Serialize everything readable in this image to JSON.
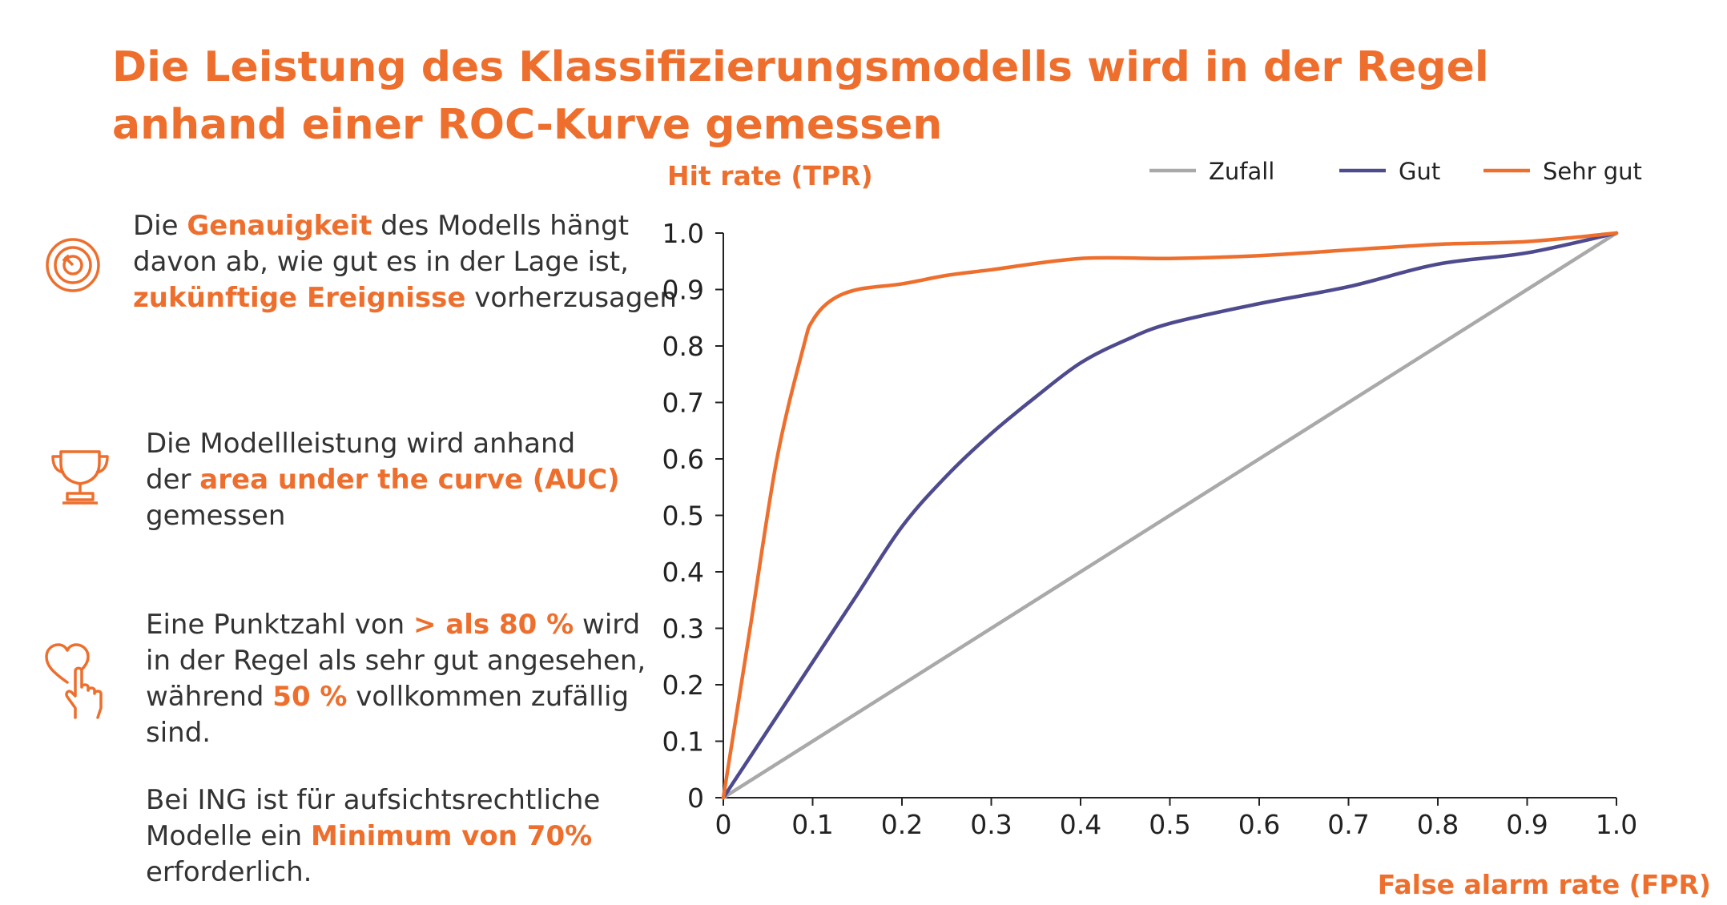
{
  "title": "Die Leistung des Klassifizierungsmodells wird in der Regel anhand einer ROC-Kurve gemessen",
  "colors": {
    "accent": "#ee6f2d",
    "text": "#333333",
    "gut": "#4e4a8e",
    "zufall": "#a9a9a9"
  },
  "points": [
    {
      "icon": "target-icon",
      "lines": [
        [
          {
            "t": "Die "
          },
          {
            "t": "Genauigkeit",
            "b": true
          },
          {
            "t": " des Modells hängt"
          }
        ],
        [
          {
            "t": "davon ab, wie gut es in der Lage ist,"
          }
        ],
        [
          {
            "t": "zukünftige Ereignisse",
            "b": true
          },
          {
            "t": " vorherzusagen"
          }
        ]
      ]
    },
    {
      "icon": "trophy-icon",
      "lines": [
        [
          {
            "t": "Die Modellleistung wird anhand"
          }
        ],
        [
          {
            "t": "der "
          },
          {
            "t": "area under the curve (AUC)",
            "b": true
          }
        ],
        [
          {
            "t": "gemessen"
          }
        ]
      ]
    },
    {
      "icon": "heart-hand-icon",
      "lines": [
        [
          {
            "t": "Eine Punktzahl von "
          },
          {
            "t": "> als 80 %",
            "b": true
          },
          {
            "t": " wird"
          }
        ],
        [
          {
            "t": "in der Regel als sehr gut angesehen,"
          }
        ],
        [
          {
            "t": "während "
          },
          {
            "t": "50 %",
            "b": true
          },
          {
            "t": " vollkommen zufällig"
          }
        ],
        [
          {
            "t": "sind."
          }
        ]
      ]
    },
    {
      "icon": "",
      "lines": [
        [
          {
            "t": "Bei ING ist für aufsichtsrechtliche"
          }
        ],
        [
          {
            "t": "Modelle ein "
          },
          {
            "t": "Minimum von 70%",
            "b": true
          }
        ],
        [
          {
            "t": "erforderlich."
          }
        ]
      ]
    }
  ],
  "chart_data": {
    "type": "line",
    "ylabel": "Hit rate (TPR)",
    "xlabel": "False alarm rate (FPR)",
    "xlim": [
      0,
      1
    ],
    "ylim": [
      0,
      1
    ],
    "xticks": [
      "0",
      "0.1",
      "0.2",
      "0.3",
      "0.4",
      "0.5",
      "0.6",
      "0.7",
      "0.8",
      "0.9",
      "1.0"
    ],
    "yticks": [
      "0",
      "0.1",
      "0.2",
      "0.3",
      "0.4",
      "0.5",
      "0.6",
      "0.7",
      "0.8",
      "0.9",
      "1.0"
    ],
    "legend_position": "top-right",
    "grid": false,
    "series": [
      {
        "name": "Zufall",
        "color": "#a9a9a9",
        "points": [
          [
            0,
            0
          ],
          [
            1,
            1
          ]
        ]
      },
      {
        "name": "Gut",
        "color": "#4e4a8e",
        "points": [
          [
            0,
            0
          ],
          [
            0.05,
            0.12
          ],
          [
            0.1,
            0.24
          ],
          [
            0.15,
            0.36
          ],
          [
            0.2,
            0.48
          ],
          [
            0.25,
            0.57
          ],
          [
            0.3,
            0.645
          ],
          [
            0.35,
            0.71
          ],
          [
            0.4,
            0.77
          ],
          [
            0.45,
            0.81
          ],
          [
            0.5,
            0.84
          ],
          [
            0.6,
            0.875
          ],
          [
            0.7,
            0.905
          ],
          [
            0.8,
            0.945
          ],
          [
            0.9,
            0.965
          ],
          [
            1,
            1
          ]
        ]
      },
      {
        "name": "Sehr gut",
        "color": "#ee6f2d",
        "points": [
          [
            0,
            0
          ],
          [
            0.03,
            0.3
          ],
          [
            0.06,
            0.6
          ],
          [
            0.09,
            0.8
          ],
          [
            0.1,
            0.845
          ],
          [
            0.12,
            0.88
          ],
          [
            0.15,
            0.9
          ],
          [
            0.2,
            0.91
          ],
          [
            0.25,
            0.925
          ],
          [
            0.3,
            0.935
          ],
          [
            0.4,
            0.955
          ],
          [
            0.5,
            0.955
          ],
          [
            0.6,
            0.96
          ],
          [
            0.7,
            0.97
          ],
          [
            0.8,
            0.98
          ],
          [
            0.9,
            0.985
          ],
          [
            1,
            1
          ]
        ]
      }
    ]
  }
}
